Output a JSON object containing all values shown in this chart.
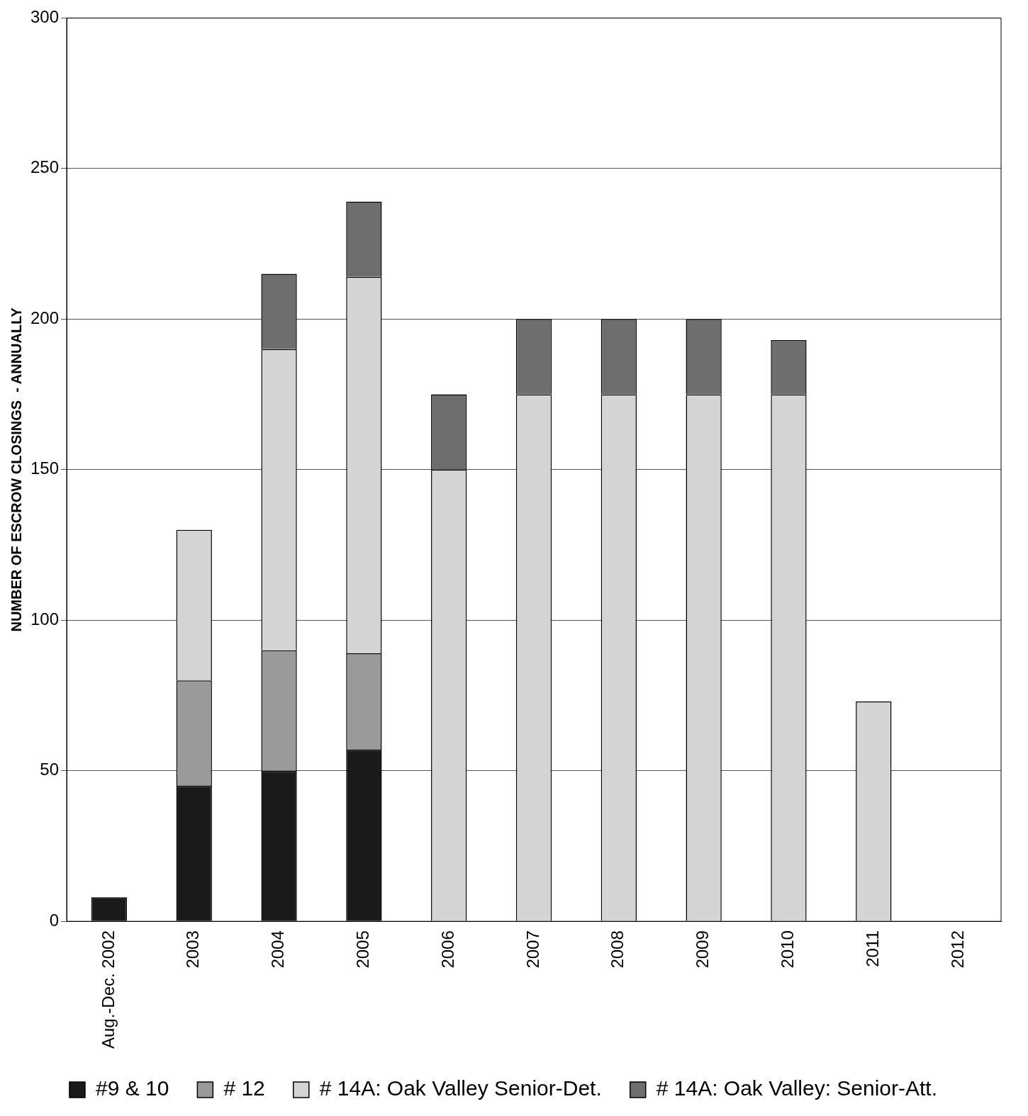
{
  "chart_data": {
    "type": "bar",
    "stacked": true,
    "ylabel": "NUMBER OF ESCROW CLOSINGS  - ANNUALLY",
    "categories": [
      "Aug.-Dec. 2002",
      "2003",
      "2004",
      "2005",
      "2006",
      "2007",
      "2008",
      "2009",
      "2010",
      "2011",
      "2012"
    ],
    "series": [
      {
        "name": "#9 & 10",
        "color": "#1a1a1a",
        "values": [
          8,
          45,
          50,
          57,
          null,
          null,
          null,
          null,
          null,
          null,
          null
        ]
      },
      {
        "name": "# 12",
        "color": "#9a9a9a",
        "values": [
          null,
          35,
          40,
          32,
          null,
          null,
          null,
          null,
          null,
          null,
          null
        ]
      },
      {
        "name": "# 14A: Oak Valley Senior-Det.",
        "color": "#d4d4d4",
        "values": [
          null,
          50,
          100,
          125,
          150,
          175,
          175,
          175,
          175,
          73,
          null
        ]
      },
      {
        "name": "# 14A: Oak Valley: Senior-Att.",
        "color": "#6e6e6e",
        "values": [
          null,
          null,
          25,
          25,
          25,
          25,
          25,
          25,
          18,
          null,
          null
        ]
      }
    ],
    "ylim": [
      0,
      300
    ],
    "yticks": [
      0,
      50,
      100,
      150,
      200,
      250,
      300
    ],
    "grid": "y",
    "legend": "bottom"
  }
}
